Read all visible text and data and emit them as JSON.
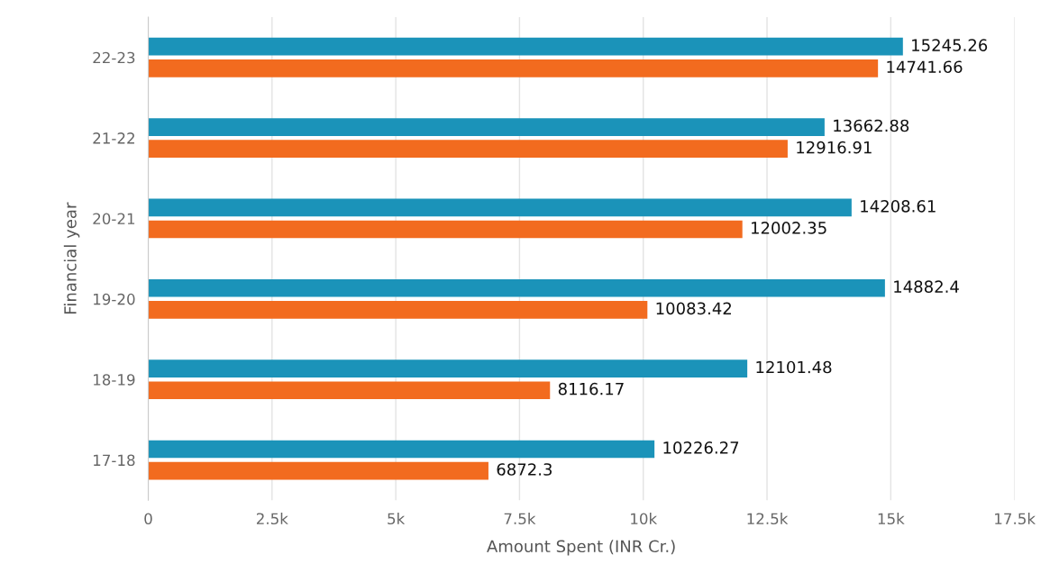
{
  "chart_data": {
    "type": "bar",
    "orientation": "horizontal",
    "xlabel": "Amount Spent (INR Cr.)",
    "ylabel": "Financial year",
    "categories": [
      "22-23",
      "21-22",
      "20-21",
      "19-20",
      "18-19",
      "17-18"
    ],
    "series": [
      {
        "color": "#1b93b9",
        "values": [
          15245.26,
          13662.88,
          14208.61,
          14882.4,
          12101.48,
          10226.27
        ]
      },
      {
        "color": "#f26b1f",
        "values": [
          14741.66,
          12916.91,
          12002.35,
          10083.42,
          8116.17,
          6872.3
        ]
      }
    ],
    "xlim": [
      0,
      17500
    ],
    "xticks": [
      0,
      {
        "value": 2500,
        "label": "2.5k"
      },
      {
        "value": 5000,
        "label": "5k"
      },
      {
        "value": 7500,
        "label": "7.5k"
      },
      {
        "value": 10000,
        "label": "10k"
      },
      {
        "value": 12500,
        "label": "12.5k"
      },
      {
        "value": 15000,
        "label": "15k"
      },
      {
        "value": 17500,
        "label": "17.5k"
      }
    ],
    "grid": "x",
    "data_labels": true
  }
}
